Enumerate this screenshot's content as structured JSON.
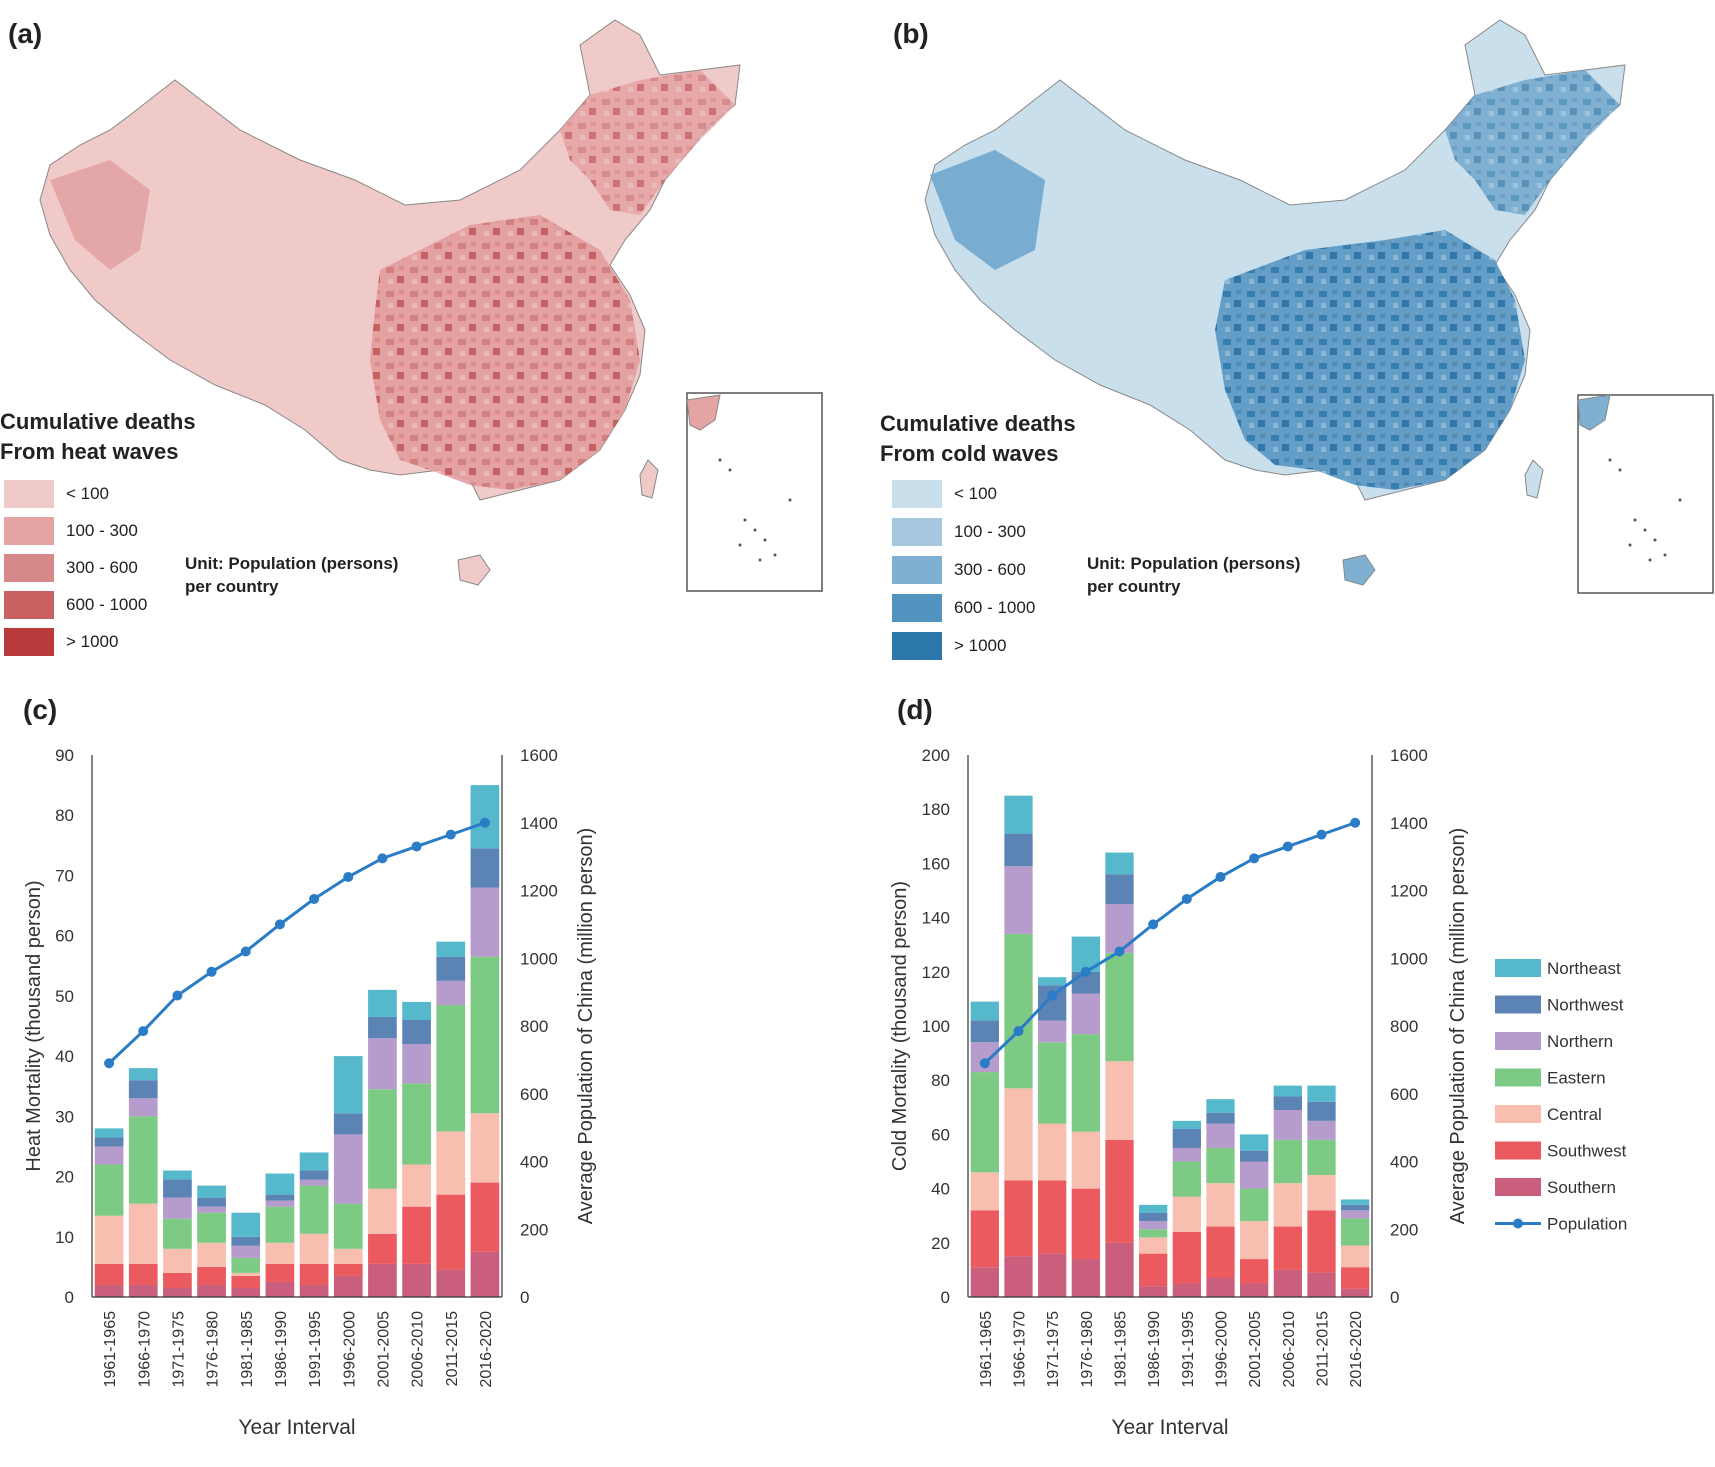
{
  "panels": {
    "a": {
      "label": "(a)",
      "legend_title": [
        "Cumulative deaths",
        "From heat waves"
      ],
      "legend_items": [
        {
          "label": "< 100",
          "color": "#f0c9c9"
        },
        {
          "label": "100 - 300",
          "color": "#e4a4a4"
        },
        {
          "label": "300 - 600",
          "color": "#d78888"
        },
        {
          "label": "600 - 1000",
          "color": "#c86262"
        },
        {
          "label": "> 1000",
          "color": "#b83a3a"
        }
      ],
      "unit_note": [
        "Unit: Population (persons)",
        "per country"
      ]
    },
    "b": {
      "label": "(b)",
      "legend_title": [
        "Cumulative deaths",
        "From cold waves"
      ],
      "legend_items": [
        {
          "label": "< 100",
          "color": "#c9dfec"
        },
        {
          "label": "100 - 300",
          "color": "#a6c8de"
        },
        {
          "label": "300 - 600",
          "color": "#7fb0d1"
        },
        {
          "label": "600 - 1000",
          "color": "#5393bf"
        },
        {
          "label": "> 1000",
          "color": "#2b77ac"
        }
      ],
      "unit_note": [
        "Unit: Population (persons)",
        "per country"
      ]
    },
    "c": {
      "label": "(c)"
    },
    "d": {
      "label": "(d)"
    }
  },
  "chart_data": [
    {
      "id": "c",
      "type": "bar",
      "stacked": true,
      "categories": [
        "1961-1965",
        "1966-1970",
        "1971-1975",
        "1976-1980",
        "1981-1985",
        "1986-1990",
        "1991-1995",
        "1996-2000",
        "2001-2005",
        "2006-2010",
        "2011-2015",
        "2016-2020"
      ],
      "xlabel": "Year Interval",
      "ylabel": "Heat Mortality (thousand person)",
      "y2label": "Average Population of China (million person)",
      "ylim": [
        0,
        90
      ],
      "yticks": [
        0,
        10,
        20,
        30,
        40,
        50,
        60,
        70,
        80,
        90
      ],
      "y2lim": [
        0,
        1600
      ],
      "y2ticks": [
        0,
        200,
        400,
        600,
        800,
        1000,
        1200,
        1400,
        1600
      ],
      "series": [
        {
          "name": "Southern",
          "color": "#c95f7d",
          "values": [
            2,
            2,
            1.5,
            2,
            1.5,
            2.5,
            2,
            3.5,
            5.5,
            5.5,
            4.5,
            7.5
          ]
        },
        {
          "name": "Southwest",
          "color": "#ea5a5e",
          "values": [
            3.5,
            3.5,
            2.5,
            3,
            2,
            3,
            3.5,
            2,
            5,
            9.5,
            12.5,
            11.5
          ]
        },
        {
          "name": "Central",
          "color": "#f8bfb0",
          "values": [
            8,
            10,
            4,
            4,
            0.5,
            3.5,
            5,
            2.5,
            7.5,
            7,
            10.5,
            11.5
          ]
        },
        {
          "name": "Eastern",
          "color": "#7dca84",
          "values": [
            8.5,
            14.5,
            5,
            5,
            2.5,
            6,
            8,
            7.5,
            16.5,
            13.5,
            21,
            26
          ]
        },
        {
          "name": "Northern",
          "color": "#b69bcd",
          "values": [
            3,
            3,
            3.5,
            1,
            2,
            1,
            1,
            11.5,
            8.5,
            6.5,
            4,
            11.5
          ]
        },
        {
          "name": "Northwest",
          "color": "#5b83b4",
          "values": [
            1.5,
            3,
            3,
            1.5,
            1.5,
            1,
            1.5,
            3.5,
            3.5,
            4,
            4,
            6.5
          ]
        },
        {
          "name": "Northeast",
          "color": "#55b9cb",
          "values": [
            1.5,
            2,
            1.5,
            2,
            4,
            3.5,
            3,
            9.5,
            4.5,
            3,
            2.5,
            10.5
          ]
        }
      ],
      "line_series": {
        "name": "Population",
        "color": "#2a7cc7",
        "axis": "y2",
        "values": [
          690,
          785,
          890,
          960,
          1020,
          1100,
          1175,
          1240,
          1295,
          1330,
          1365,
          1400
        ]
      }
    },
    {
      "id": "d",
      "type": "bar",
      "stacked": true,
      "categories": [
        "1961-1965",
        "1966-1970",
        "1971-1975",
        "1976-1980",
        "1981-1985",
        "1986-1990",
        "1991-1995",
        "1996-2000",
        "2001-2005",
        "2006-2010",
        "2011-2015",
        "2016-2020"
      ],
      "xlabel": "Year Interval",
      "ylabel": "Cold Mortality (thousand person)",
      "y2label": "Average Population of China (million person)",
      "ylim": [
        0,
        200
      ],
      "yticks": [
        0,
        20,
        40,
        60,
        80,
        100,
        120,
        140,
        160,
        180,
        200
      ],
      "y2lim": [
        0,
        1600
      ],
      "y2ticks": [
        0,
        200,
        400,
        600,
        800,
        1000,
        1200,
        1400,
        1600
      ],
      "series": [
        {
          "name": "Southern",
          "color": "#c95f7d",
          "values": [
            11,
            15,
            16,
            14,
            20,
            4,
            5,
            7,
            5,
            10,
            9,
            3
          ]
        },
        {
          "name": "Southwest",
          "color": "#ea5a5e",
          "values": [
            21,
            28,
            27,
            26,
            38,
            12,
            19,
            19,
            9,
            16,
            23,
            8
          ]
        },
        {
          "name": "Central",
          "color": "#f8bfb0",
          "values": [
            14,
            34,
            21,
            21,
            29,
            6,
            13,
            16,
            14,
            16,
            13,
            8
          ]
        },
        {
          "name": "Eastern",
          "color": "#7dca84",
          "values": [
            37,
            57,
            30,
            36,
            40,
            3,
            13,
            13,
            12,
            16,
            13,
            10
          ]
        },
        {
          "name": "Northern",
          "color": "#b69bcd",
          "values": [
            11,
            25,
            8,
            15,
            18,
            3,
            5,
            9,
            10,
            11,
            7,
            3
          ]
        },
        {
          "name": "Northwest",
          "color": "#5b83b4",
          "values": [
            8,
            12,
            13,
            8,
            11,
            3,
            7,
            4,
            4,
            5,
            7,
            2
          ]
        },
        {
          "name": "Northeast",
          "color": "#55b9cb",
          "values": [
            7,
            14,
            3,
            13,
            8,
            3,
            3,
            5,
            6,
            4,
            6,
            2
          ]
        }
      ],
      "line_series": {
        "name": "Population",
        "color": "#2a7cc7",
        "axis": "y2",
        "values": [
          690,
          785,
          890,
          960,
          1020,
          1100,
          1175,
          1240,
          1295,
          1330,
          1365,
          1400
        ]
      },
      "legend": [
        "Northeast",
        "Northwest",
        "Northern",
        "Eastern",
        "Central",
        "Southwest",
        "Southern",
        "Population"
      ]
    }
  ]
}
